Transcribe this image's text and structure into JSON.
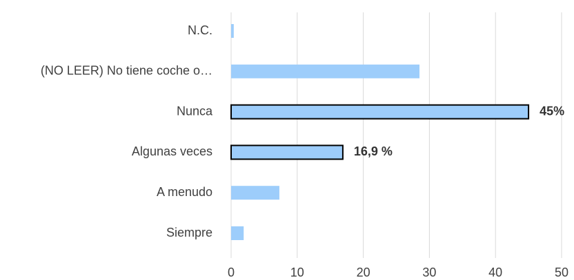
{
  "chart_data": {
    "type": "bar",
    "orientation": "horizontal",
    "categories": [
      "N.C.",
      "(NO LEER) No tiene coche o…",
      "Nunca",
      "Algunas veces",
      "A menudo",
      "Siempre"
    ],
    "values": [
      0.4,
      28.5,
      45,
      16.9,
      7.3,
      1.9
    ],
    "value_labels": [
      null,
      null,
      "45%",
      "16,9 %",
      null,
      null
    ],
    "color": "#9dcdfb",
    "xlim": [
      0,
      50
    ],
    "xticks": [
      0,
      10,
      20,
      30,
      40,
      50
    ],
    "grid": true
  }
}
